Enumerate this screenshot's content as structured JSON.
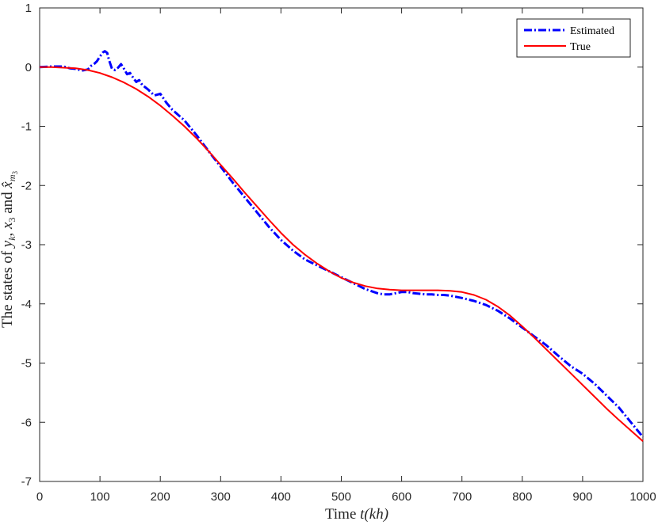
{
  "chart_data": {
    "type": "line",
    "xlabel_text": "Time ",
    "xlabel_math": "t(kh)",
    "ylabel_text": "The states of ",
    "ylabel_math1": "y",
    "ylabel_sub1": "k",
    "ylabel_sep": ", ",
    "ylabel_math2": "x",
    "ylabel_sub2": "3",
    "ylabel_and": " and ",
    "ylabel_math3": "x̂",
    "ylabel_sub3": "m",
    "ylabel_subsub3": "3",
    "xlim": [
      0,
      1000
    ],
    "ylim": [
      -7,
      1
    ],
    "xticks": [
      0,
      100,
      200,
      300,
      400,
      500,
      600,
      700,
      800,
      900,
      1000
    ],
    "yticks": [
      1,
      0,
      -1,
      -2,
      -3,
      -4,
      -5,
      -6,
      -7
    ],
    "grid": false,
    "legend_position": "top-right",
    "colors": {
      "estimated": "#0000ff",
      "true": "#ff0000",
      "axis": "#262626"
    },
    "series": [
      {
        "name": "Estimated",
        "style": "dash-dot",
        "x": [
          0,
          20,
          40,
          50,
          60,
          70,
          80,
          85,
          90,
          95,
          100,
          105,
          108,
          112,
          115,
          120,
          125,
          130,
          135,
          140,
          145,
          150,
          155,
          160,
          165,
          170,
          180,
          190,
          200,
          210,
          220,
          240,
          260,
          280,
          300,
          320,
          340,
          360,
          380,
          400,
          420,
          440,
          460,
          480,
          500,
          520,
          540,
          560,
          570,
          580,
          590,
          600,
          610,
          620,
          630,
          640,
          650,
          660,
          670,
          680,
          690,
          700,
          720,
          740,
          760,
          780,
          800,
          820,
          840,
          860,
          880,
          900,
          920,
          940,
          960,
          980,
          1000
        ],
        "y": [
          0,
          0.01,
          0.01,
          -0.02,
          -0.03,
          -0.06,
          -0.04,
          0.02,
          0.05,
          0.1,
          0.18,
          0.25,
          0.27,
          0.24,
          0.12,
          -0.03,
          -0.05,
          -0.01,
          0.05,
          -0.03,
          -0.12,
          -0.1,
          -0.18,
          -0.25,
          -0.22,
          -0.3,
          -0.38,
          -0.48,
          -0.45,
          -0.6,
          -0.72,
          -0.9,
          -1.15,
          -1.42,
          -1.68,
          -1.95,
          -2.2,
          -2.45,
          -2.7,
          -2.92,
          -3.1,
          -3.25,
          -3.35,
          -3.45,
          -3.55,
          -3.65,
          -3.75,
          -3.82,
          -3.84,
          -3.84,
          -3.82,
          -3.8,
          -3.8,
          -3.82,
          -3.83,
          -3.84,
          -3.84,
          -3.85,
          -3.85,
          -3.86,
          -3.88,
          -3.9,
          -3.95,
          -4.02,
          -4.12,
          -4.25,
          -4.4,
          -4.55,
          -4.7,
          -4.88,
          -5.05,
          -5.18,
          -5.35,
          -5.55,
          -5.75,
          -6.0,
          -6.25
        ]
      },
      {
        "name": "True",
        "style": "solid",
        "x": [
          0,
          20,
          40,
          60,
          80,
          100,
          120,
          140,
          160,
          180,
          200,
          220,
          240,
          260,
          280,
          300,
          320,
          340,
          360,
          380,
          400,
          420,
          440,
          460,
          480,
          500,
          520,
          540,
          560,
          580,
          600,
          620,
          640,
          660,
          680,
          700,
          720,
          740,
          760,
          780,
          800,
          820,
          840,
          860,
          880,
          900,
          920,
          940,
          960,
          980,
          1000
        ],
        "y": [
          0,
          0,
          -0.01,
          -0.02,
          -0.05,
          -0.1,
          -0.17,
          -0.26,
          -0.37,
          -0.5,
          -0.65,
          -0.82,
          -1.0,
          -1.2,
          -1.42,
          -1.65,
          -1.88,
          -2.12,
          -2.35,
          -2.58,
          -2.8,
          -3.0,
          -3.17,
          -3.32,
          -3.45,
          -3.56,
          -3.64,
          -3.7,
          -3.74,
          -3.76,
          -3.77,
          -3.77,
          -3.77,
          -3.77,
          -3.78,
          -3.8,
          -3.85,
          -3.93,
          -4.05,
          -4.2,
          -4.38,
          -4.57,
          -4.77,
          -4.97,
          -5.17,
          -5.37,
          -5.57,
          -5.77,
          -5.96,
          -6.14,
          -6.32
        ]
      }
    ]
  }
}
